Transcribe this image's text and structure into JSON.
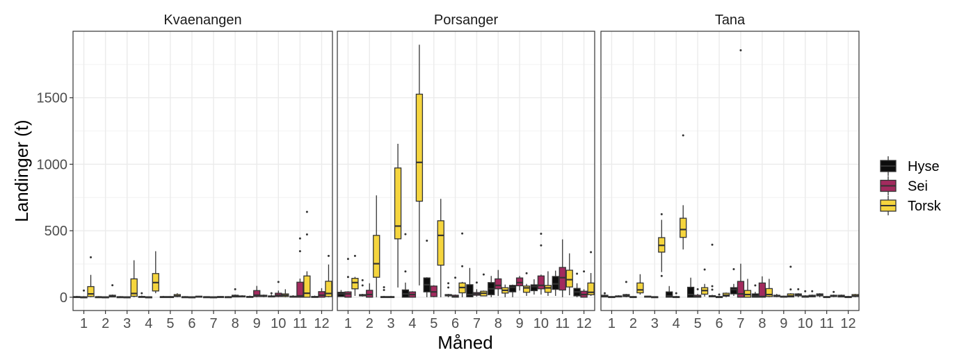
{
  "chart_data": {
    "type": "boxplot",
    "xlabel": "Måned",
    "ylabel": "Landinger (t)",
    "ylim": [
      -100,
      2000
    ],
    "yticks": [
      0,
      500,
      1000,
      1500
    ],
    "categories": [
      "1",
      "2",
      "3",
      "4",
      "5",
      "6",
      "7",
      "8",
      "9",
      "10",
      "11",
      "12"
    ],
    "stat_format": "[whisker_low, q1, median, q3, whisker_high, [outliers]]",
    "legend": {
      "position": "right",
      "entries": [
        "Hyse",
        "Sei",
        "Torsk"
      ]
    },
    "colors": {
      "Hyse": "#0d0d0d",
      "Sei": "#a22a5e",
      "Torsk": "#f5d53e"
    },
    "panels": [
      {
        "title": "Kvaenangen",
        "series": {
          "Hyse": [
            [
              0,
              0,
              2,
              5,
              10,
              []
            ],
            [
              0,
              0,
              2,
              4,
              8,
              []
            ],
            [
              0,
              0,
              2,
              4,
              8,
              []
            ],
            [
              0,
              0,
              3,
              6,
              12,
              [
                30
              ]
            ],
            [
              0,
              0,
              2,
              5,
              10,
              []
            ],
            [
              0,
              0,
              2,
              4,
              8,
              []
            ],
            [
              0,
              0,
              2,
              4,
              6,
              []
            ],
            [
              0,
              0,
              2,
              4,
              8,
              []
            ],
            [
              0,
              0,
              3,
              6,
              12,
              []
            ],
            [
              0,
              2,
              5,
              10,
              20,
              [
                30
              ]
            ],
            [
              0,
              0,
              3,
              8,
              15,
              []
            ],
            [
              0,
              0,
              3,
              6,
              12,
              []
            ]
          ],
          "Sei": [
            [
              0,
              0,
              1,
              3,
              8,
              [
                50
              ]
            ],
            [
              0,
              0,
              1,
              3,
              6,
              []
            ],
            [
              0,
              0,
              1,
              3,
              6,
              []
            ],
            [
              0,
              0,
              1,
              3,
              5,
              []
            ],
            [
              0,
              0,
              2,
              5,
              8,
              []
            ],
            [
              0,
              0,
              1,
              3,
              5,
              []
            ],
            [
              0,
              0,
              1,
              3,
              5,
              []
            ],
            [
              0,
              2,
              8,
              15,
              20,
              [
                60
              ]
            ],
            [
              0,
              5,
              15,
              50,
              85,
              []
            ],
            [
              0,
              5,
              15,
              30,
              50,
              [
                115
              ]
            ],
            [
              0,
              0,
              10,
              113,
              140,
              [
                346,
                442
              ]
            ],
            [
              0,
              0,
              15,
              42,
              68,
              []
            ]
          ],
          "Torsk": [
            [
              0,
              5,
              25,
              80,
              168,
              [
                300
              ]
            ],
            [
              0,
              2,
              8,
              15,
              20,
              [
                90
              ]
            ],
            [
              0,
              7,
              28,
              138,
              278,
              []
            ],
            [
              30,
              47,
              110,
              178,
              346,
              []
            ],
            [
              0,
              5,
              10,
              20,
              30,
              []
            ],
            [
              0,
              2,
              4,
              8,
              10,
              []
            ],
            [
              0,
              2,
              3,
              5,
              8,
              []
            ],
            [
              0,
              3,
              6,
              10,
              15,
              []
            ],
            [
              0,
              5,
              10,
              15,
              20,
              []
            ],
            [
              0,
              5,
              15,
              25,
              60,
              []
            ],
            [
              0,
              0,
              30,
              160,
              195,
              [
                472,
                642
              ]
            ],
            [
              0,
              5,
              28,
              120,
              246,
              [
                311
              ]
            ]
          ]
        }
      },
      {
        "title": "Porsanger",
        "series": {
          "Hyse": [
            [
              5,
              5,
              25,
              37,
              54,
              []
            ],
            [
              5,
              10,
              15,
              20,
              25,
              [
                89,
                128
              ]
            ],
            [
              0,
              0,
              2,
              5,
              10,
              [
                54,
                75
              ]
            ],
            [
              0,
              0,
              25,
              55,
              110,
              [
                194,
                474
              ]
            ],
            [
              0,
              40,
              94,
              145,
              150,
              [
                425
              ]
            ],
            [
              0,
              10,
              15,
              20,
              25,
              [
                73,
                105
              ]
            ],
            [
              0,
              3,
              20,
              94,
              220,
              []
            ],
            [
              0,
              19,
              63,
              110,
              160,
              []
            ],
            [
              0,
              40,
              75,
              89,
              95,
              []
            ],
            [
              20,
              49,
              80,
              93,
              135,
              []
            ],
            [
              10,
              59,
              100,
              156,
              200,
              []
            ],
            [
              0,
              10,
              40,
              66,
              105,
              [
                177
              ]
            ]
          ],
          "Sei": [
            [
              0,
              0,
              25,
              40,
              45,
              [
                152,
                288
              ]
            ],
            [
              0,
              0,
              20,
              52,
              105,
              []
            ],
            [
              0,
              0,
              2,
              5,
              10,
              []
            ],
            [
              0,
              0,
              20,
              40,
              45,
              []
            ],
            [
              0,
              5,
              40,
              84,
              90,
              []
            ],
            [
              0,
              0,
              5,
              15,
              20,
              [
                147
              ]
            ],
            [
              5,
              15,
              25,
              35,
              60,
              [
                110
              ]
            ],
            [
              10,
              63,
              89,
              138,
              205,
              []
            ],
            [
              50,
              86,
              110,
              145,
              160,
              []
            ],
            [
              20,
              63,
              89,
              160,
              170,
              [
                390,
                477
              ]
            ],
            [
              0,
              54,
              147,
              224,
              435,
              []
            ],
            [
              0,
              0,
              20,
              45,
              60,
              [
                194
              ]
            ]
          ],
          "Torsk": [
            [
              10,
              63,
              110,
              142,
              153,
              [
                311
              ]
            ],
            [
              0,
              150,
              252,
              465,
              766,
              []
            ],
            [
              73,
              439,
              535,
              972,
              1154,
              []
            ],
            [
              89,
              722,
              1014,
              1527,
              1899,
              []
            ],
            [
              0,
              241,
              465,
              575,
              740,
              []
            ],
            [
              0,
              33,
              73,
              107,
              115,
              [
                233,
                479
              ]
            ],
            [
              10,
              10,
              30,
              45,
              50,
              [
                171
              ]
            ],
            [
              0,
              31,
              52,
              72,
              95,
              []
            ],
            [
              10,
              37,
              70,
              84,
              100,
              [
                180
              ]
            ],
            [
              10,
              37,
              70,
              89,
              195,
              []
            ],
            [
              15,
              77,
              132,
              203,
              330,
              []
            ],
            [
              10,
              19,
              37,
              107,
              182,
              [
                339
              ]
            ]
          ]
        }
      },
      {
        "title": "Tana",
        "series": {
          "Hyse": [
            [
              0,
              2,
              8,
              15,
              20,
              [
                30
              ]
            ],
            [
              0,
              5,
              15,
              20,
              25,
              [
                115
              ]
            ],
            [
              0,
              2,
              5,
              8,
              10,
              []
            ],
            [
              0,
              0,
              10,
              40,
              84,
              []
            ],
            [
              0,
              0,
              20,
              75,
              147,
              []
            ],
            [
              0,
              3,
              8,
              12,
              18,
              [
                57,
                83,
                395
              ]
            ],
            [
              10,
              25,
              58,
              72,
              100,
              [
                211
              ]
            ],
            [
              0,
              0,
              10,
              25,
              40,
              [
                89
              ]
            ],
            [
              0,
              5,
              10,
              15,
              25,
              []
            ],
            [
              0,
              10,
              15,
              25,
              30,
              [
                60
              ]
            ],
            [
              0,
              10,
              15,
              25,
              30,
              []
            ],
            [
              0,
              2,
              8,
              15,
              20,
              []
            ]
          ],
          "Sei": [
            [
              0,
              0,
              2,
              5,
              8,
              []
            ],
            [
              0,
              0,
              2,
              5,
              8,
              []
            ],
            [
              0,
              0,
              2,
              4,
              6,
              []
            ],
            [
              0,
              0,
              2,
              5,
              10,
              [
                30
              ]
            ],
            [
              0,
              0,
              5,
              15,
              25,
              [
                60
              ]
            ],
            [
              0,
              0,
              3,
              5,
              10,
              [
                20
              ]
            ],
            [
              0,
              0,
              25,
              119,
              252,
              [
                1857
              ]
            ],
            [
              0,
              0,
              5,
              107,
              157,
              []
            ],
            [
              0,
              0,
              3,
              8,
              12,
              []
            ],
            [
              0,
              0,
              5,
              10,
              15,
              [
                45
              ]
            ],
            [
              0,
              0,
              2,
              5,
              8,
              []
            ],
            [
              0,
              0,
              3,
              5,
              10,
              []
            ]
          ],
          "Torsk": [
            [
              0,
              2,
              5,
              10,
              15,
              []
            ],
            [
              20,
              33,
              55,
              107,
              173,
              []
            ],
            [
              189,
              339,
              390,
              448,
              582,
              [
                160,
                624
              ]
            ],
            [
              359,
              450,
              509,
              594,
              692,
              [
                1217
              ]
            ],
            [
              5,
              23,
              50,
              72,
              100,
              [
                208
              ]
            ],
            [
              0,
              8,
              15,
              30,
              35,
              []
            ],
            [
              0,
              0,
              20,
              51,
              138,
              []
            ],
            [
              0,
              5,
              20,
              65,
              138,
              []
            ],
            [
              0,
              2,
              10,
              25,
              30,
              [
                59,
                229
              ]
            ],
            [
              0,
              3,
              8,
              15,
              20,
              [
                45
              ]
            ],
            [
              0,
              5,
              10,
              15,
              20,
              [
                40
              ]
            ],
            [
              0,
              5,
              10,
              20,
              25,
              []
            ]
          ]
        }
      }
    ]
  }
}
